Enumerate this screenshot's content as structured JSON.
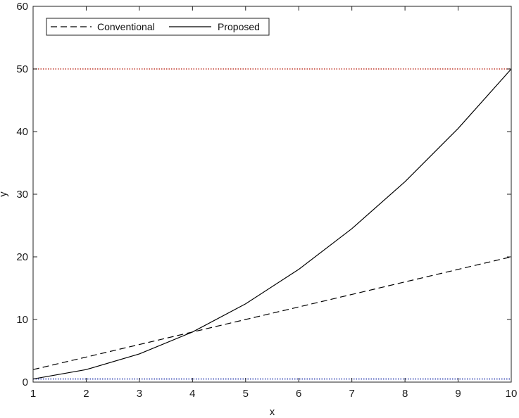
{
  "chart_data": {
    "type": "line",
    "title": "",
    "xlabel": "x",
    "ylabel": "y",
    "xlim": [
      1,
      10
    ],
    "ylim": [
      0,
      60
    ],
    "xticks": [
      1,
      2,
      3,
      4,
      5,
      6,
      7,
      8,
      9,
      10
    ],
    "yticks": [
      0,
      10,
      20,
      30,
      40,
      50,
      60
    ],
    "grid": false,
    "legend_position": "top-left",
    "x": [
      1,
      2,
      3,
      4,
      5,
      6,
      7,
      8,
      9,
      10
    ],
    "series": [
      {
        "name": "Conventional",
        "style": "dashed",
        "color": "#000000",
        "values": [
          2,
          4,
          6,
          8,
          10,
          12,
          14,
          16,
          18,
          20
        ]
      },
      {
        "name": "Proposed",
        "style": "solid",
        "color": "#000000",
        "values": [
          0.5,
          2,
          4.5,
          8,
          12.5,
          18,
          24.5,
          32,
          40.5,
          50
        ]
      }
    ],
    "reference_lines": [
      {
        "y": 50,
        "style": "dotted",
        "color": "#c0392b"
      },
      {
        "y": 0.5,
        "style": "dotted",
        "color": "#2c3fb0"
      }
    ]
  }
}
